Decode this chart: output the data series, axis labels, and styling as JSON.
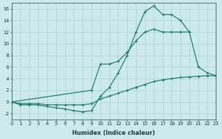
{
  "background_color": "#cceaea",
  "line_color": "#1a7a6e",
  "grid_color": "#aacfcf",
  "xlabel": "Humidex (Indice chaleur)",
  "xlim": [
    0,
    23
  ],
  "ylim": [
    -3,
    17
  ],
  "xticks": [
    0,
    1,
    2,
    3,
    4,
    5,
    6,
    7,
    8,
    9,
    10,
    11,
    12,
    13,
    14,
    15,
    16,
    17,
    18,
    19,
    20,
    21,
    22,
    23
  ],
  "yticks": [
    -2,
    0,
    2,
    4,
    6,
    8,
    10,
    12,
    14,
    16
  ],
  "line1_x": [
    0,
    1,
    2,
    3,
    4,
    5,
    6,
    7,
    8,
    9,
    10,
    11,
    12,
    13,
    14,
    15,
    16,
    17,
    18,
    19,
    20
  ],
  "line1_y": [
    0,
    -0.5,
    -0.5,
    -0.5,
    -0.8,
    -1.0,
    -1.2,
    -1.5,
    -1.7,
    -1.5,
    1.0,
    2.5,
    5.0,
    8.0,
    12.0,
    15.5,
    16.5,
    15.0,
    15.0,
    14.0,
    12.0
  ],
  "line2_x": [
    0,
    9,
    10,
    11,
    12,
    13,
    14,
    15,
    16,
    17,
    18,
    19,
    20,
    21,
    22,
    23
  ],
  "line2_y": [
    0,
    2.0,
    6.5,
    6.5,
    7.0,
    8.5,
    10.5,
    12.0,
    12.5,
    12.0,
    12.0,
    12.0,
    12.0,
    6.0,
    5.0,
    4.5
  ],
  "line3_x": [
    0,
    1,
    2,
    3,
    4,
    5,
    6,
    7,
    8,
    9,
    10,
    11,
    12,
    13,
    14,
    15,
    16,
    17,
    18,
    19,
    20,
    21,
    22,
    23
  ],
  "line3_y": [
    0,
    -0.3,
    -0.3,
    -0.3,
    -0.5,
    -0.5,
    -0.5,
    -0.5,
    -0.5,
    -0.3,
    0.5,
    1.0,
    1.5,
    2.0,
    2.5,
    3.0,
    3.5,
    3.8,
    4.0,
    4.2,
    4.3,
    4.4,
    4.5,
    4.5
  ],
  "marker": "+",
  "markersize": 3,
  "linewidth": 0.9,
  "tick_fontsize": 5,
  "xlabel_fontsize": 6
}
